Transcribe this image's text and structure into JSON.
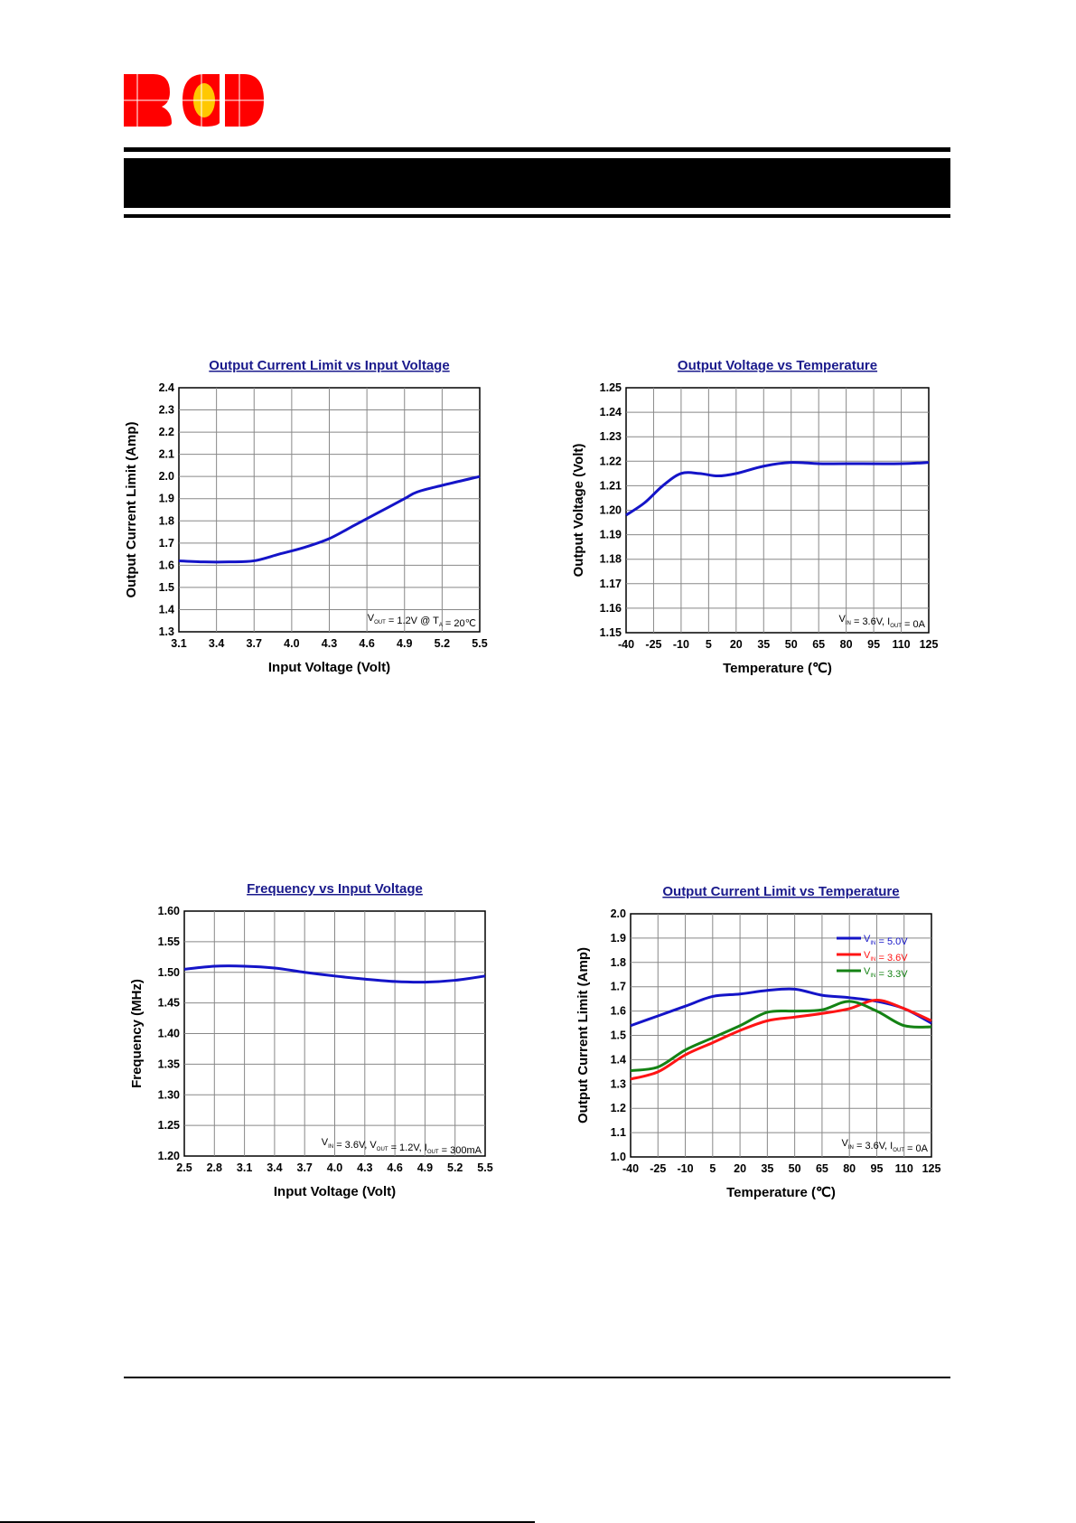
{
  "logo": {
    "text": "BCD",
    "colors": {
      "red": "#ff0000",
      "yellow": "#ffc800"
    }
  },
  "chart_data": [
    {
      "type": "line",
      "title": "Output Current Limit vs Input Voltage",
      "xlabel": "Input Voltage (Volt)",
      "ylabel": "Output Current Limit (Amp)",
      "xlim": [
        3.1,
        5.5
      ],
      "xstep": 0.3,
      "xdec": 1,
      "ylim": [
        1.3,
        2.4
      ],
      "ystep": 0.1,
      "ydec": 1,
      "grid": true,
      "annotation": [
        {
          "t": "V"
        },
        {
          "s": "OUT"
        },
        {
          "t": " = 1.2V @ T"
        },
        {
          "s": "A"
        },
        {
          "t": " = 20℃"
        }
      ],
      "series": [
        {
          "name": "",
          "color": "#1414c8",
          "x": [
            3.1,
            3.3,
            3.5,
            3.7,
            3.9,
            4.1,
            4.3,
            4.5,
            4.7,
            4.9,
            5.0,
            5.2,
            5.5
          ],
          "y": [
            1.62,
            1.615,
            1.615,
            1.62,
            1.65,
            1.68,
            1.72,
            1.78,
            1.84,
            1.9,
            1.93,
            1.96,
            2.0
          ]
        }
      ]
    },
    {
      "type": "line",
      "title": "Output Voltage vs Temperature",
      "xlabel": "Temperature (℃)",
      "ylabel": "Output Voltage (Volt)",
      "xlim": [
        -40,
        125
      ],
      "xstep": 15,
      "xdec": 0,
      "ylim": [
        1.15,
        1.25
      ],
      "ystep": 0.01,
      "ydec": 2,
      "grid": true,
      "annotation": [
        {
          "t": "V"
        },
        {
          "s": "IN"
        },
        {
          "t": " = 3.6V, I"
        },
        {
          "s": "OUT"
        },
        {
          "t": " = 0A"
        }
      ],
      "series": [
        {
          "name": "",
          "color": "#1414c8",
          "x": [
            -40,
            -30,
            -20,
            -10,
            0,
            10,
            20,
            35,
            50,
            65,
            80,
            110,
            125
          ],
          "y": [
            1.198,
            1.203,
            1.21,
            1.215,
            1.215,
            1.214,
            1.215,
            1.218,
            1.2195,
            1.219,
            1.219,
            1.219,
            1.2195
          ]
        }
      ]
    },
    {
      "type": "line",
      "title": "Frequency vs Input Voltage",
      "xlabel": "Input Voltage (Volt)",
      "ylabel": "Frequency (MHz)",
      "xlim": [
        2.5,
        5.5
      ],
      "xstep": 0.3,
      "xdec": 1,
      "ylim": [
        1.2,
        1.6
      ],
      "ystep": 0.05,
      "ydec": 2,
      "grid": true,
      "annotation": [
        {
          "t": "V"
        },
        {
          "s": "IN"
        },
        {
          "t": " = 3.6V, V"
        },
        {
          "s": "OUT"
        },
        {
          "t": " = 1.2V, I"
        },
        {
          "s": "OUT"
        },
        {
          "t": " = 300mA"
        }
      ],
      "series": [
        {
          "name": "",
          "color": "#1414c8",
          "x": [
            2.5,
            2.8,
            3.1,
            3.4,
            3.7,
            4.0,
            4.3,
            4.6,
            4.9,
            5.2,
            5.5
          ],
          "y": [
            1.505,
            1.51,
            1.51,
            1.507,
            1.5,
            1.494,
            1.489,
            1.485,
            1.484,
            1.487,
            1.494
          ]
        }
      ]
    },
    {
      "type": "line",
      "title": "Output Current Limit vs Temperature",
      "xlabel": "Temperature (℃)",
      "ylabel": "Output Current Limit (Amp)",
      "xlim": [
        -40,
        125
      ],
      "xstep": 15,
      "xdec": 0,
      "ylim": [
        1.0,
        2.0
      ],
      "ystep": 0.1,
      "ydec": 1,
      "grid": true,
      "legend": "top-right",
      "annotation": [
        {
          "t": "V"
        },
        {
          "s": "IN"
        },
        {
          "t": " = 3.6V, I"
        },
        {
          "s": "OUT"
        },
        {
          "t": " = 0A"
        }
      ],
      "series": [
        {
          "name": "VIN = 5.0V",
          "label": [
            {
              "t": "V"
            },
            {
              "s": "IN"
            },
            {
              "t": " = 5.0V"
            }
          ],
          "color": "#1414c8",
          "x": [
            -40,
            -25,
            -10,
            5,
            20,
            35,
            50,
            65,
            80,
            95,
            110,
            125
          ],
          "y": [
            1.54,
            1.58,
            1.62,
            1.66,
            1.67,
            1.685,
            1.69,
            1.665,
            1.655,
            1.64,
            1.61,
            1.55
          ]
        },
        {
          "name": "VIN = 3.6V",
          "label": [
            {
              "t": "V"
            },
            {
              "s": "IN"
            },
            {
              "t": " = 3.6V"
            }
          ],
          "color": "#ff1414",
          "x": [
            -40,
            -25,
            -10,
            5,
            20,
            35,
            50,
            65,
            80,
            95,
            110,
            125
          ],
          "y": [
            1.32,
            1.35,
            1.42,
            1.47,
            1.52,
            1.56,
            1.575,
            1.59,
            1.61,
            1.645,
            1.61,
            1.56
          ]
        },
        {
          "name": "VIN = 3.3V",
          "label": [
            {
              "t": "V"
            },
            {
              "s": "IN"
            },
            {
              "t": " = 3.3V"
            }
          ],
          "color": "#148214",
          "x": [
            -40,
            -25,
            -10,
            5,
            20,
            35,
            50,
            65,
            80,
            95,
            110,
            125
          ],
          "y": [
            1.355,
            1.37,
            1.44,
            1.49,
            1.54,
            1.595,
            1.6,
            1.605,
            1.64,
            1.6,
            1.54,
            1.535
          ]
        }
      ]
    }
  ]
}
